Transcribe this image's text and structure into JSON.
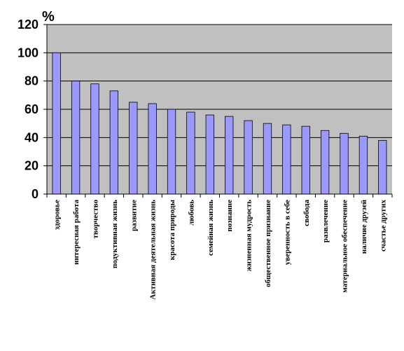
{
  "chart_data": {
    "type": "bar",
    "ylabel": "%",
    "ylim": [
      0,
      120
    ],
    "yticks": [
      0,
      20,
      40,
      60,
      80,
      100,
      120
    ],
    "grid": true,
    "colors": {
      "plot_bg": "#c0c0c0",
      "bar_fill": "#9999ff",
      "bar_stroke": "#000000",
      "grid": "#000000"
    },
    "categories": [
      "здоровье",
      "интересная работа",
      "творчество",
      "подуктивная жизнь",
      "развитие",
      "Активная деятельная жизнь",
      "красота природы",
      "любовь",
      "семейная жизнь",
      "познание",
      "жизненная мудрость",
      "общественное признание",
      "уверенность в себе",
      "свобода",
      "развлечение",
      "материальное обеспечение",
      "наличие друзей",
      "счастье других"
    ],
    "values": [
      100,
      80,
      78,
      73,
      65,
      64,
      60,
      58,
      56,
      55,
      52,
      50,
      49,
      48,
      45,
      43,
      41,
      38
    ]
  }
}
